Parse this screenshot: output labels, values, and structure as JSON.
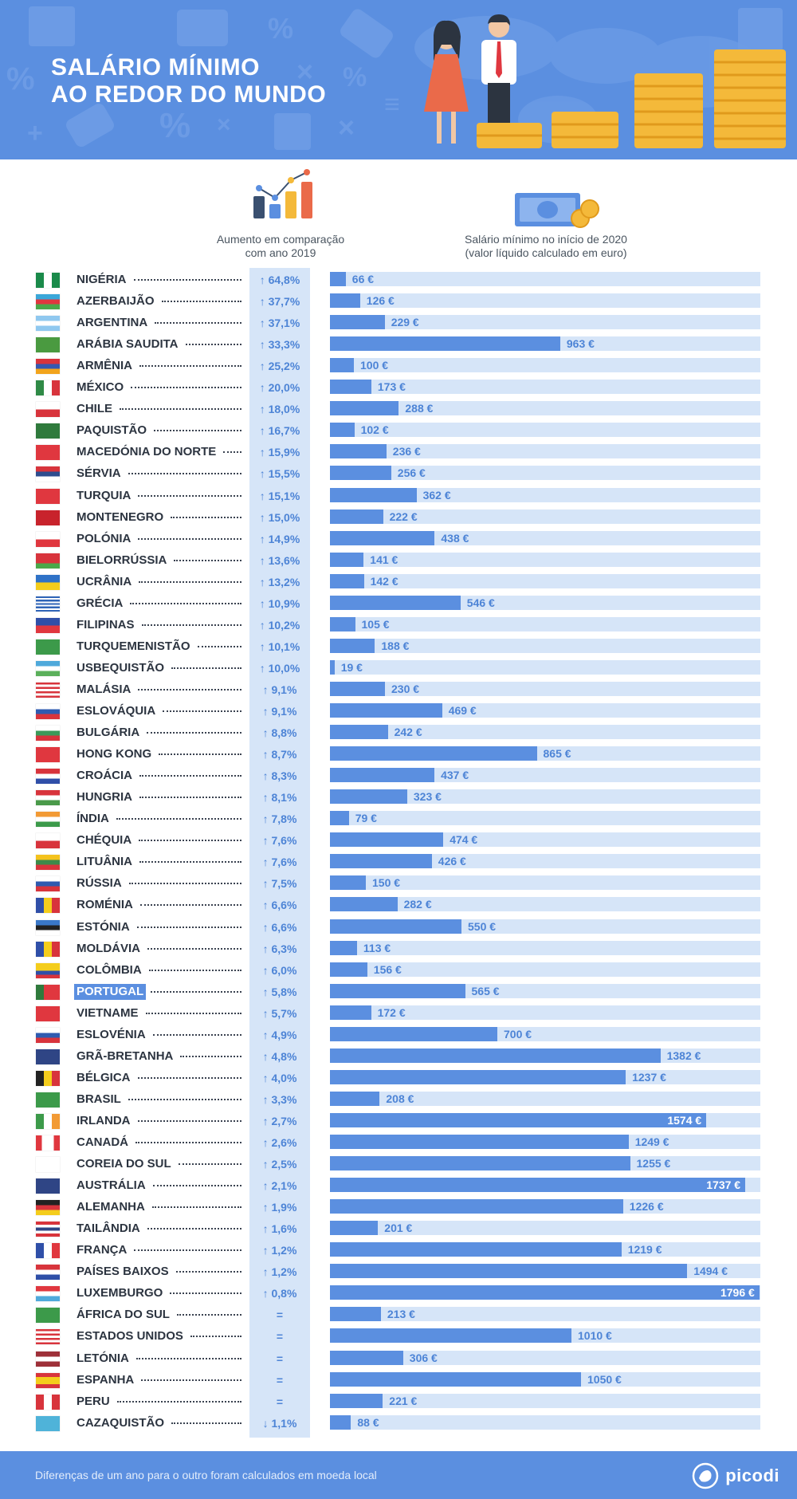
{
  "header": {
    "title_line1": "SALÁRIO MÍNIMO",
    "title_line2": "AO REDOR DO MUNDO"
  },
  "columns": {
    "increase_header_line1": "Aumento em comparação",
    "increase_header_line2": "com ano 2019",
    "salary_header_line1": "Salário mínimo no início de 2020",
    "salary_header_line2": "(valor líquido calculado em euro)"
  },
  "footer": {
    "note": "Diferenças de um ano para o outro foram calculados em moeda local",
    "brand": "picodi"
  },
  "colors": {
    "primary": "#5b8fe0",
    "light": "#d6e5f8",
    "text_dark": "#2c3440",
    "text_accent": "#4d84d6"
  },
  "chart_data": {
    "type": "bar",
    "orientation": "horizontal",
    "title": "SALÁRIO MÍNIMO AO REDOR DO MUNDO",
    "xlim": [
      0,
      1800
    ],
    "unit": "€",
    "highlighted": "PORTUGAL",
    "rows": [
      {
        "country": "NIGÉRIA",
        "increase": "↑ 64,8%",
        "value": 66
      },
      {
        "country": "AZERBAIJÃO",
        "increase": "↑ 37,7%",
        "value": 126
      },
      {
        "country": "ARGENTINA",
        "increase": "↑ 37,1%",
        "value": 229
      },
      {
        "country": "ARÁBIA SAUDITA",
        "increase": "↑ 33,3%",
        "value": 963
      },
      {
        "country": "ARMÊNIA",
        "increase": "↑ 25,2%",
        "value": 100
      },
      {
        "country": "MÉXICO",
        "increase": "↑ 20,0%",
        "value": 173
      },
      {
        "country": "CHILE",
        "increase": "↑ 18,0%",
        "value": 288
      },
      {
        "country": "PAQUISTÃO",
        "increase": "↑ 16,7%",
        "value": 102
      },
      {
        "country": "MACEDÓNIA DO NORTE",
        "increase": "↑ 15,9%",
        "value": 236
      },
      {
        "country": "SÉRVIA",
        "increase": "↑ 15,5%",
        "value": 256
      },
      {
        "country": "TURQUIA",
        "increase": "↑ 15,1%",
        "value": 362
      },
      {
        "country": "MONTENEGRO",
        "increase": "↑ 15,0%",
        "value": 222
      },
      {
        "country": "POLÓNIA",
        "increase": "↑ 14,9%",
        "value": 438
      },
      {
        "country": "BIELORRÚSSIA",
        "increase": "↑ 13,6%",
        "value": 141
      },
      {
        "country": "UCRÂNIA",
        "increase": "↑ 13,2%",
        "value": 142
      },
      {
        "country": "GRÉCIA",
        "increase": "↑ 10,9%",
        "value": 546
      },
      {
        "country": "FILIPINAS",
        "increase": "↑ 10,2%",
        "value": 105
      },
      {
        "country": "TURQUEMENISTÃO",
        "increase": "↑ 10,1%",
        "value": 188
      },
      {
        "country": "USBEQUISTÃO",
        "increase": "↑ 10,0%",
        "value": 19
      },
      {
        "country": "MALÁSIA",
        "increase": "↑ 9,1%",
        "value": 230
      },
      {
        "country": "ESLOVÁQUIA",
        "increase": "↑ 9,1%",
        "value": 469
      },
      {
        "country": "BULGÁRIA",
        "increase": "↑ 8,8%",
        "value": 242
      },
      {
        "country": "HONG KONG",
        "increase": "↑ 8,7%",
        "value": 865
      },
      {
        "country": "CROÁCIA",
        "increase": "↑ 8,3%",
        "value": 437
      },
      {
        "country": "HUNGRIA",
        "increase": "↑ 8,1%",
        "value": 323
      },
      {
        "country": "ÍNDIA",
        "increase": "↑ 7,8%",
        "value": 79
      },
      {
        "country": "CHÉQUIA",
        "increase": "↑ 7,6%",
        "value": 474
      },
      {
        "country": "LITUÂNIA",
        "increase": "↑ 7,6%",
        "value": 426
      },
      {
        "country": "RÚSSIA",
        "increase": "↑ 7,5%",
        "value": 150
      },
      {
        "country": "ROMÉNIA",
        "increase": "↑ 6,6%",
        "value": 282
      },
      {
        "country": "ESTÓNIA",
        "increase": "↑ 6,6%",
        "value": 550
      },
      {
        "country": "MOLDÁVIA",
        "increase": "↑ 6,3%",
        "value": 113
      },
      {
        "country": "COLÔMBIA",
        "increase": "↑ 6,0%",
        "value": 156
      },
      {
        "country": "PORTUGAL",
        "increase": "↑ 5,8%",
        "value": 565
      },
      {
        "country": "VIETNAME",
        "increase": "↑ 5,7%",
        "value": 172
      },
      {
        "country": "ESLOVÉNIA",
        "increase": "↑ 4,9%",
        "value": 700
      },
      {
        "country": "GRÃ-BRETANHA",
        "increase": "↑ 4,8%",
        "value": 1382
      },
      {
        "country": "BÉLGICA",
        "increase": "↑ 4,0%",
        "value": 1237
      },
      {
        "country": "BRASIL",
        "increase": "↑ 3,3%",
        "value": 208
      },
      {
        "country": "IRLANDA",
        "increase": "↑ 2,7%",
        "value": 1574
      },
      {
        "country": "CANADÁ",
        "increase": "↑ 2,6%",
        "value": 1249
      },
      {
        "country": "COREIA DO SUL",
        "increase": "↑ 2,5%",
        "value": 1255
      },
      {
        "country": "AUSTRÁLIA",
        "increase": "↑ 2,1%",
        "value": 1737
      },
      {
        "country": "ALEMANHA",
        "increase": "↑ 1,9%",
        "value": 1226
      },
      {
        "country": "TAILÂNDIA",
        "increase": "↑ 1,6%",
        "value": 201
      },
      {
        "country": "FRANÇA",
        "increase": "↑ 1,2%",
        "value": 1219
      },
      {
        "country": "PAÍSES BAIXOS",
        "increase": "↑ 1,2%",
        "value": 1494
      },
      {
        "country": "LUXEMBURGO",
        "increase": "↑ 0,8%",
        "value": 1796
      },
      {
        "country": "ÁFRICA DO SUL",
        "increase": "=",
        "value": 213
      },
      {
        "country": "ESTADOS UNIDOS",
        "increase": "=",
        "value": 1010
      },
      {
        "country": "LETÓNIA",
        "increase": "=",
        "value": 306
      },
      {
        "country": "ESPANHA",
        "increase": "=",
        "value": 1050
      },
      {
        "country": "PERU",
        "increase": "=",
        "value": 221
      },
      {
        "country": "CAZAQUISTÃO",
        "increase": "↓ 1,1%",
        "value": 88
      }
    ]
  },
  "flags": {
    "NIGÉRIA": [
      "v",
      "#1a8a4a",
      "#ffffff",
      "#1a8a4a"
    ],
    "AZERBAIJÃO": [
      "h",
      "#3aa7d9",
      "#e0373f",
      "#4aa84a"
    ],
    "ARGENTINA": [
      "h",
      "#8fc8ef",
      "#ffffff",
      "#8fc8ef"
    ],
    "ARÁBIA SAUDITA": [
      "s",
      "#4a9a40"
    ],
    "ARMÊNIA": [
      "h",
      "#d8343c",
      "#3558b0",
      "#f2a41c"
    ],
    "MÉXICO": [
      "v",
      "#2f8a46",
      "#ffffff",
      "#d8343c"
    ],
    "CHILE": [
      "h",
      "#ffffff",
      "#d8343c"
    ],
    "PAQUISTÃO": [
      "s",
      "#2f7a3c"
    ],
    "MACEDÓNIA DO NORTE": [
      "s",
      "#e0373f"
    ],
    "SÉRVIA": [
      "h",
      "#d8343c",
      "#2e4d8f",
      "#ffffff"
    ],
    "TURQUIA": [
      "s",
      "#e0373f"
    ],
    "MONTENEGRO": [
      "s",
      "#c8232c"
    ],
    "POLÓNIA": [
      "h",
      "#ffffff",
      "#e0373f"
    ],
    "BIELORRÚSSIA": [
      "h",
      "#d8343c",
      "#d8343c",
      "#4aa84a"
    ],
    "UCRÂNIA": [
      "h",
      "#2f72c7",
      "#f4cd1c"
    ],
    "GRÉCIA": [
      "h",
      "#2f64b7",
      "#ffffff",
      "#2f64b7",
      "#ffffff",
      "#2f64b7",
      "#ffffff",
      "#2f64b7",
      "#ffffff",
      "#2f64b7"
    ],
    "FILIPINAS": [
      "h",
      "#2f4fa8",
      "#e0373f"
    ],
    "TURQUEMENISTÃO": [
      "s",
      "#3c9a4a"
    ],
    "USBEQUISTÃO": [
      "h",
      "#4fa9db",
      "#ffffff",
      "#5bb05b"
    ],
    "MALÁSIA": [
      "h",
      "#d8343c",
      "#ffffff",
      "#d8343c",
      "#ffffff",
      "#d8343c",
      "#ffffff",
      "#d8343c"
    ],
    "ESLOVÁQUIA": [
      "h",
      "#ffffff",
      "#2f5bb0",
      "#d8343c"
    ],
    "BULGÁRIA": [
      "h",
      "#ffffff",
      "#3c9a5a",
      "#d8343c"
    ],
    "HONG KONG": [
      "s",
      "#e0373f"
    ],
    "CROÁCIA": [
      "h",
      "#d8343c",
      "#ffffff",
      "#2f4fa8"
    ],
    "HUNGRIA": [
      "h",
      "#d8343c",
      "#ffffff",
      "#4a9a4a"
    ],
    "ÍNDIA": [
      "h",
      "#f29a34",
      "#ffffff",
      "#3c9a4a"
    ],
    "CHÉQUIA": [
      "h",
      "#ffffff",
      "#d8343c"
    ],
    "LITUÂNIA": [
      "h",
      "#f4c21c",
      "#3c8a4a",
      "#d8343c"
    ],
    "RÚSSIA": [
      "h",
      "#ffffff",
      "#2f5bb0",
      "#d8343c"
    ],
    "ROMÉNIA": [
      "v",
      "#2f4fa8",
      "#f4cd1c",
      "#d8343c"
    ],
    "ESTÓNIA": [
      "h",
      "#3a78c8",
      "#222222",
      "#ffffff"
    ],
    "MOLDÁVIA": [
      "v",
      "#2f4fa8",
      "#f4cd1c",
      "#d8343c"
    ],
    "COLÔMBIA": [
      "h",
      "#f4cd1c",
      "#f4cd1c",
      "#2f4fa8",
      "#d8343c"
    ],
    "PORTUGAL": [
      "v",
      "#2f7a3c",
      "#e0373f",
      "#e0373f"
    ],
    "VIETNAME": [
      "s",
      "#e0373f"
    ],
    "ESLOVÉNIA": [
      "h",
      "#ffffff",
      "#2f5bb0",
      "#d8343c"
    ],
    "GRÃ-BRETANHA": [
      "s",
      "#2f4585"
    ],
    "BÉLGICA": [
      "v",
      "#222222",
      "#f4cd1c",
      "#d8343c"
    ],
    "BRASIL": [
      "s",
      "#3c9a4a"
    ],
    "IRLANDA": [
      "v",
      "#3c9a4a",
      "#ffffff",
      "#f29a34"
    ],
    "CANADÁ": [
      "v",
      "#e0373f",
      "#ffffff",
      "#ffffff",
      "#e0373f"
    ],
    "COREIA DO SUL": [
      "s",
      "#ffffff"
    ],
    "AUSTRÁLIA": [
      "s",
      "#2f4585"
    ],
    "ALEMANHA": [
      "h",
      "#222222",
      "#d8343c",
      "#f4cd1c"
    ],
    "TAILÂNDIA": [
      "h",
      "#d8343c",
      "#ffffff",
      "#2f4585",
      "#ffffff",
      "#d8343c"
    ],
    "FRANÇA": [
      "v",
      "#2f4fa8",
      "#ffffff",
      "#e0373f"
    ],
    "PAÍSES BAIXOS": [
      "h",
      "#d8343c",
      "#ffffff",
      "#2f4fa8"
    ],
    "LUXEMBURGO": [
      "h",
      "#e0373f",
      "#ffffff",
      "#4fa9db"
    ],
    "ÁFRICA DO SUL": [
      "s",
      "#3c9a4a"
    ],
    "ESTADOS UNIDOS": [
      "h",
      "#d8343c",
      "#ffffff",
      "#d8343c",
      "#ffffff",
      "#d8343c",
      "#ffffff",
      "#d8343c"
    ],
    "LETÓNIA": [
      "h",
      "#9e3039",
      "#ffffff",
      "#9e3039"
    ],
    "ESPANHA": [
      "h",
      "#d8343c",
      "#f4cd1c",
      "#f4cd1c",
      "#d8343c"
    ],
    "PERU": [
      "v",
      "#d8343c",
      "#ffffff",
      "#d8343c"
    ],
    "CAZAQUISTÃO": [
      "s",
      "#4fb3d9"
    ]
  }
}
